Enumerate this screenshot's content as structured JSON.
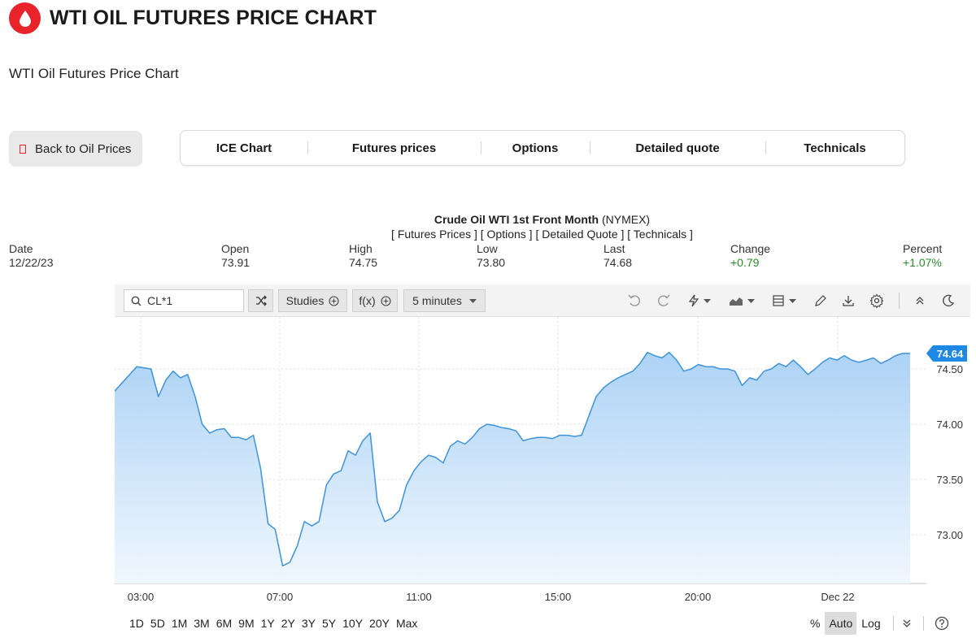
{
  "header": {
    "title": "WTI OIL FUTURES PRICE CHART",
    "subtitle": "WTI Oil Futures Price Chart"
  },
  "back_button": {
    "label": "Back to Oil Prices"
  },
  "nav": {
    "items": [
      "ICE Chart",
      "Futures prices",
      "Options",
      "Detailed quote",
      "Technicals"
    ]
  },
  "instrument": {
    "name": "Crude Oil WTI 1st Front Month",
    "exchange": "(NYMEX)",
    "links": "[ Futures Prices ] [ Options ] [ Detailed Quote ] [ Technicals ]"
  },
  "quote": {
    "date_label": "Date",
    "date": "12/22/23",
    "open_label": "Open",
    "open": "73.91",
    "high_label": "High",
    "high": "74.75",
    "low_label": "Low",
    "low": "73.80",
    "last_label": "Last",
    "last": "74.68",
    "change_label": "Change",
    "change": "+0.79",
    "percent_label": "Percent",
    "percent": "+1.07%"
  },
  "toolbar": {
    "symbol": "CL*1",
    "studies": "Studies",
    "fx": "f(x)",
    "interval": "5 minutes"
  },
  "colors": {
    "accent": "#1e88e5",
    "line": "#3f93d8",
    "positive": "#2e8b2e",
    "brand": "#e8232a"
  },
  "ranges": [
    "1D",
    "5D",
    "1M",
    "3M",
    "6M",
    "9M",
    "1Y",
    "2Y",
    "3Y",
    "5Y",
    "10Y",
    "20Y",
    "Max"
  ],
  "scale": {
    "percent": "%",
    "auto": "Auto",
    "log": "Log"
  },
  "chart_data": {
    "type": "area",
    "x_ticks": [
      "03:00",
      "07:00",
      "11:00",
      "15:00",
      "20:00",
      "Dec 22"
    ],
    "y_ticks": [
      "74.50",
      "74.00",
      "73.50",
      "73.00"
    ],
    "ylim": [
      72.56,
      74.97
    ],
    "last_price_label": "74.64",
    "grid": true,
    "x": [
      0,
      0.68,
      1.12,
      1.35,
      1.58,
      1.8,
      2.03,
      2.25,
      2.48,
      2.7,
      2.93,
      3.15,
      3.38,
      3.6,
      3.83,
      4.05,
      4.28,
      4.5,
      4.73,
      4.95,
      5.18,
      5.4,
      5.63,
      5.85,
      6.08,
      6.3,
      6.53,
      6.75,
      6.98,
      7.2,
      7.43,
      7.65,
      7.88,
      8.1,
      8.33,
      8.55,
      8.78,
      9,
      9.23,
      9.45,
      9.68,
      9.9,
      10.13,
      10.35,
      10.58,
      10.8,
      11.03,
      11.25,
      11.48,
      11.7,
      11.93,
      12.15,
      12.38,
      12.6,
      12.83,
      13.05,
      13.28,
      13.5,
      13.73,
      13.95,
      14.18,
      14.4,
      14.63,
      14.85,
      15.08,
      15.3,
      15.53,
      15.75,
      15.98,
      16.2,
      16.43,
      16.65,
      16.88,
      17.1,
      17.33,
      17.55,
      17.78,
      18,
      18.23,
      18.45,
      18.68,
      18.9,
      19.13,
      19.35,
      19.58,
      19.8,
      20.03,
      20.25,
      20.48,
      20.7,
      20.93,
      21.15,
      21.38,
      21.6,
      21.83,
      22.05,
      22.28,
      22.5,
      22.73,
      22.95,
      23.18,
      23.4,
      23.63,
      23.85,
      24.08,
      24.3,
      24.53
    ],
    "series": [
      {
        "values": [
          74.3,
          74.52,
          74.5,
          74.25,
          74.4,
          74.48,
          74.42,
          74.45,
          74.25,
          74.0,
          73.92,
          73.95,
          73.96,
          73.88,
          73.88,
          73.86,
          73.9,
          73.6,
          73.1,
          73.05,
          72.72,
          72.75,
          72.9,
          73.12,
          73.08,
          73.12,
          73.45,
          73.55,
          73.58,
          73.76,
          73.72,
          73.85,
          73.92,
          73.3,
          73.12,
          73.15,
          73.22,
          73.45,
          73.58,
          73.66,
          73.72,
          73.7,
          73.65,
          73.8,
          73.85,
          73.82,
          73.88,
          73.96,
          74.0,
          73.99,
          73.97,
          73.96,
          73.94,
          73.85,
          73.87,
          73.88,
          73.88,
          73.87,
          73.9,
          73.9,
          73.89,
          73.9,
          74.08,
          74.25,
          74.33,
          74.38,
          74.42,
          74.45,
          74.48,
          74.55,
          74.65,
          74.62,
          74.6,
          74.65,
          74.58,
          74.48,
          74.5,
          74.54,
          74.52,
          74.52,
          74.5,
          74.5,
          74.48,
          74.35,
          74.42,
          74.4,
          74.48,
          74.5,
          74.55,
          74.52,
          74.58,
          74.52,
          74.45,
          74.5,
          74.56,
          74.6,
          74.58,
          74.62,
          74.58,
          74.56,
          74.58,
          74.6,
          74.55,
          74.58,
          74.62,
          74.64,
          74.64
        ]
      }
    ]
  }
}
